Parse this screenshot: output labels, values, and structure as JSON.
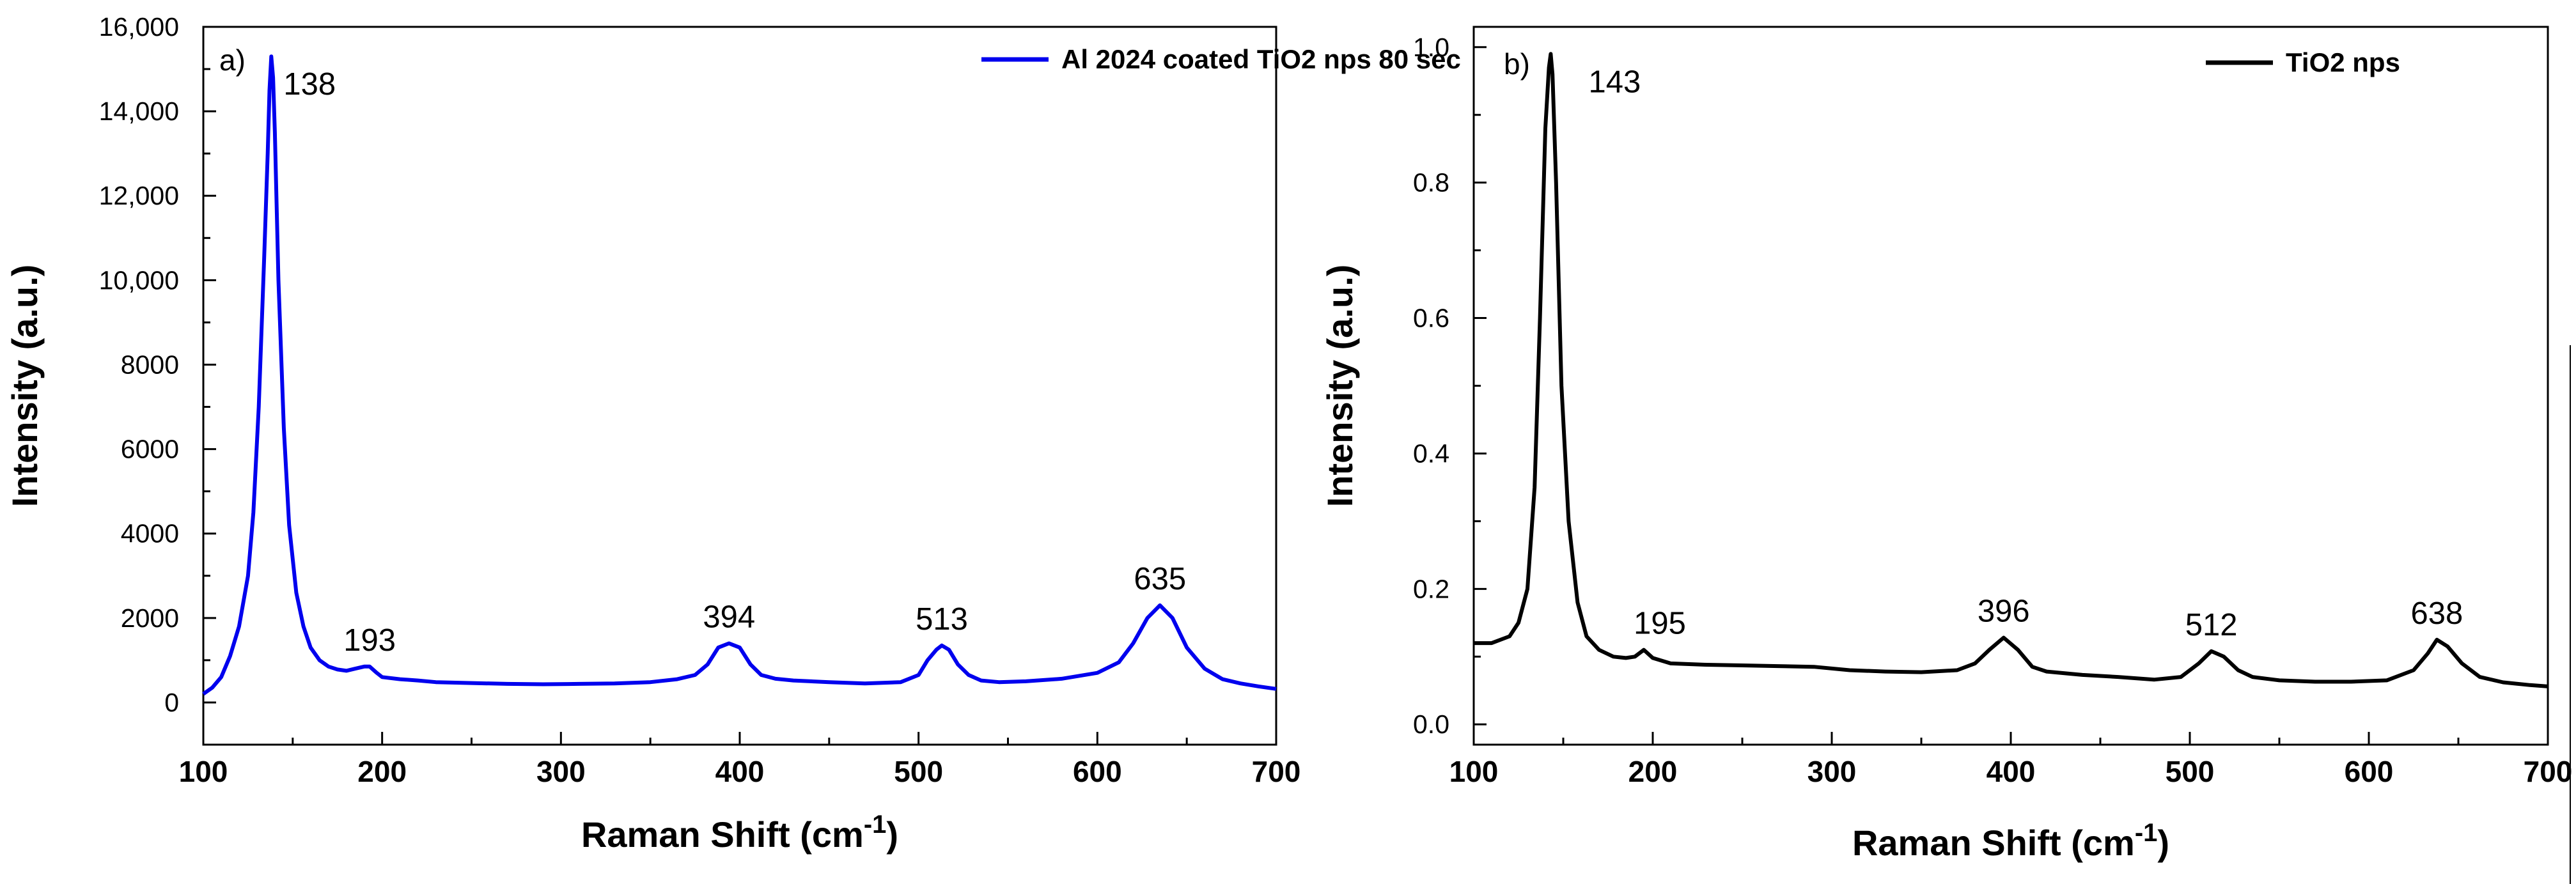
{
  "chart_data": [
    {
      "type": "line",
      "panel_label": "a)",
      "xlabel": "Raman Shift",
      "xlabel_unit": "(cm",
      "xlabel_unit_exp": "-1",
      "xlabel_unit_close": ")",
      "ylabel": "Intensity (a.u.)",
      "xlim": [
        100,
        700
      ],
      "ylim": [
        -1000,
        16000
      ],
      "x_ticks": [
        100,
        200,
        300,
        400,
        500,
        600,
        700
      ],
      "x_tick_labels": [
        "100",
        "200",
        "300",
        "400",
        "500",
        "600",
        "700"
      ],
      "y_ticks": [
        0,
        2000,
        4000,
        6000,
        8000,
        10000,
        12000,
        14000,
        16000
      ],
      "y_tick_labels": [
        "0",
        "2000",
        "4000",
        "6000",
        "8000",
        "10,000",
        "12,000",
        "14,000",
        "16,000"
      ],
      "legend": "top-right",
      "series": [
        {
          "name": "Al 2024 coated TiO2 nps 80 sec",
          "color": "#0000ee",
          "x": [
            100,
            105,
            110,
            115,
            120,
            125,
            128,
            131,
            134,
            136,
            137,
            138,
            139,
            140,
            142,
            145,
            148,
            152,
            156,
            160,
            165,
            170,
            175,
            180,
            185,
            190,
            193,
            197,
            200,
            210,
            220,
            230,
            250,
            270,
            290,
            310,
            330,
            350,
            365,
            375,
            382,
            388,
            394,
            400,
            406,
            412,
            420,
            430,
            450,
            470,
            490,
            500,
            505,
            510,
            513,
            517,
            522,
            528,
            535,
            545,
            560,
            580,
            600,
            612,
            620,
            628,
            635,
            642,
            650,
            660,
            670,
            680,
            690,
            700
          ],
          "y": [
            200,
            350,
            600,
            1100,
            1800,
            3000,
            4500,
            7000,
            10500,
            13000,
            14500,
            15300,
            14800,
            13500,
            10000,
            6500,
            4200,
            2600,
            1800,
            1300,
            1000,
            850,
            780,
            750,
            800,
            850,
            850,
            700,
            600,
            550,
            520,
            480,
            460,
            440,
            430,
            440,
            450,
            480,
            550,
            650,
            900,
            1300,
            1400,
            1300,
            900,
            650,
            560,
            520,
            480,
            450,
            480,
            650,
            1000,
            1250,
            1350,
            1250,
            900,
            650,
            520,
            480,
            500,
            560,
            700,
            950,
            1400,
            2000,
            2300,
            2000,
            1300,
            800,
            550,
            450,
            380,
            320
          ]
        }
      ],
      "annotations": [
        {
          "label": "138",
          "x": 138,
          "y": 15300
        },
        {
          "label": "193",
          "x": 193,
          "y": 850
        },
        {
          "label": "394",
          "x": 394,
          "y": 1400
        },
        {
          "label": "513",
          "x": 513,
          "y": 1350
        },
        {
          "label": "635",
          "x": 635,
          "y": 2300
        }
      ]
    },
    {
      "type": "line",
      "panel_label": "b)",
      "xlabel": "Raman Shift",
      "xlabel_unit": "(cm",
      "xlabel_unit_exp": "-1",
      "xlabel_unit_close": ")",
      "ylabel": "Intensity (a.u.)",
      "xlim": [
        100,
        700
      ],
      "ylim": [
        -0.03,
        1.03
      ],
      "x_ticks": [
        100,
        200,
        300,
        400,
        500,
        600,
        700
      ],
      "x_tick_labels": [
        "100",
        "200",
        "300",
        "400",
        "500",
        "600",
        "700"
      ],
      "y_ticks": [
        0,
        0.2,
        0.4,
        0.6,
        0.8,
        1.0
      ],
      "y_tick_labels": [
        "0.0",
        "0.2",
        "0.4",
        "0.6",
        "0.8",
        "1.0"
      ],
      "legend": "top-right",
      "series": [
        {
          "name": "TiO2 nps",
          "color": "#000000",
          "x": [
            100,
            110,
            120,
            125,
            130,
            134,
            137,
            140,
            142,
            143,
            144,
            146,
            149,
            153,
            158,
            163,
            170,
            178,
            185,
            190,
            195,
            200,
            210,
            230,
            250,
            270,
            290,
            310,
            330,
            350,
            370,
            380,
            388,
            396,
            404,
            412,
            420,
            440,
            460,
            480,
            495,
            505,
            512,
            519,
            527,
            535,
            550,
            570,
            590,
            610,
            625,
            633,
            638,
            644,
            652,
            662,
            675,
            690,
            700
          ],
          "y": [
            0.12,
            0.12,
            0.13,
            0.15,
            0.2,
            0.35,
            0.6,
            0.88,
            0.97,
            0.99,
            0.96,
            0.8,
            0.5,
            0.3,
            0.18,
            0.13,
            0.11,
            0.1,
            0.098,
            0.1,
            0.11,
            0.098,
            0.09,
            0.088,
            0.087,
            0.086,
            0.085,
            0.08,
            0.078,
            0.077,
            0.08,
            0.09,
            0.11,
            0.128,
            0.11,
            0.085,
            0.078,
            0.073,
            0.07,
            0.066,
            0.07,
            0.09,
            0.108,
            0.1,
            0.08,
            0.07,
            0.065,
            0.063,
            0.063,
            0.065,
            0.08,
            0.105,
            0.125,
            0.115,
            0.09,
            0.07,
            0.062,
            0.058,
            0.056
          ]
        }
      ],
      "annotations": [
        {
          "label": "143",
          "x": 143,
          "y": 0.99
        },
        {
          "label": "195",
          "x": 195,
          "y": 0.11
        },
        {
          "label": "396",
          "x": 396,
          "y": 0.128
        },
        {
          "label": "512",
          "x": 512,
          "y": 0.108
        },
        {
          "label": "638",
          "x": 638,
          "y": 0.125
        }
      ]
    }
  ]
}
